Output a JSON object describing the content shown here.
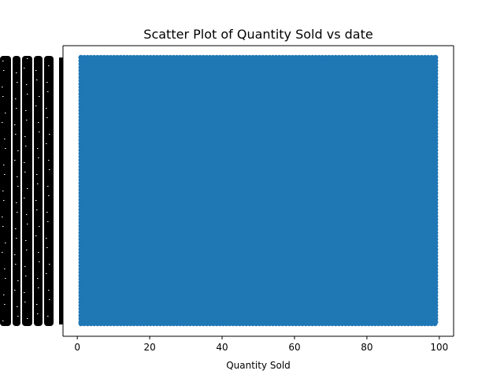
{
  "chart_data": {
    "type": "scatter",
    "title": "Scatter Plot of Quantity Sold vs date",
    "xlabel": "Quantity Sold",
    "ylabel": "",
    "xlim": [
      -3.95,
      103.95
    ],
    "x_ticks": [
      "0",
      "20",
      "40",
      "60",
      "80",
      "100"
    ],
    "x_tick_values": [
      0,
      20,
      40,
      60,
      80,
      100
    ],
    "x_range_of_points": [
      1,
      99
    ],
    "y_axis": "categorical dates; tick labels overlap and are illegible",
    "grid": false,
    "series": [
      {
        "color": "#1f77b4",
        "marker": "circle",
        "note_points": "dense cloud spanning every date and quantity from 1 to 99"
      }
    ]
  }
}
